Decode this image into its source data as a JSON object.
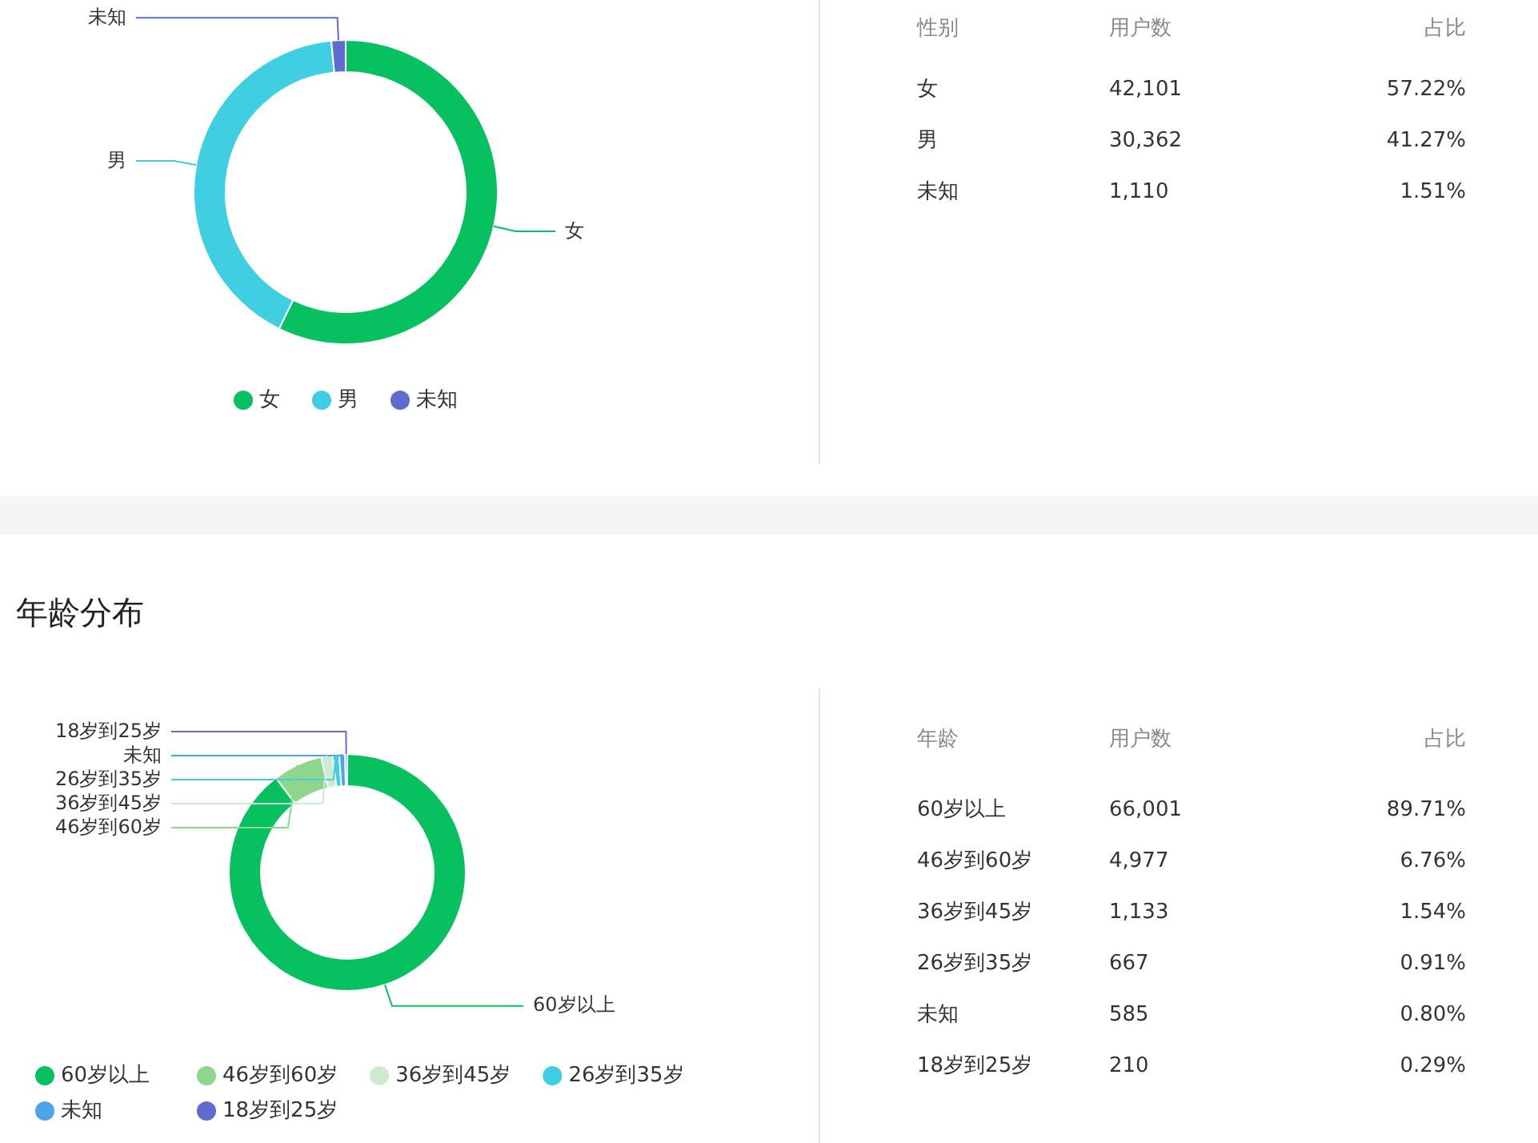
{
  "chart_data": [
    {
      "type": "donut",
      "categories": [
        "女",
        "男",
        "未知"
      ],
      "values": [
        57.22,
        41.27,
        1.51
      ],
      "colors": [
        "#07c160",
        "#40cee2",
        "#5c6ccf"
      ],
      "legend": "bottom"
    },
    {
      "type": "other",
      "annotations": [
        "性别",
        "用户数",
        "占比",
        "女",
        "42,101",
        "57.22%",
        "男",
        "30,362",
        "41.27%",
        "未知",
        "1,110",
        "1.51%"
      ]
    },
    {
      "type": "donut",
      "title": "年龄分布",
      "categories": [
        "60岁以上",
        "46岁到60岁",
        "36岁到45岁",
        "26岁到35岁",
        "未知",
        "18岁到25岁"
      ],
      "values": [
        89.71,
        6.76,
        1.54,
        0.91,
        0.8,
        0.29
      ],
      "colors": [
        "#07c160",
        "#8dd68b",
        "#cdeccf",
        "#40cee2",
        "#4fa3ec",
        "#5c6ccf"
      ],
      "legend": "bottom"
    },
    {
      "type": "other",
      "annotations": [
        "年龄",
        "用户数",
        "占比",
        "60岁以上",
        "66,001",
        "89.71%",
        "46岁到60岁",
        "4,977",
        "6.76%",
        "36岁到45岁",
        "1,133",
        "1.54%",
        "26岁到35岁",
        "667",
        "0.91%",
        "未知",
        "585",
        "0.80%",
        "18岁到25岁",
        "210",
        "0.29%"
      ]
    }
  ]
}
